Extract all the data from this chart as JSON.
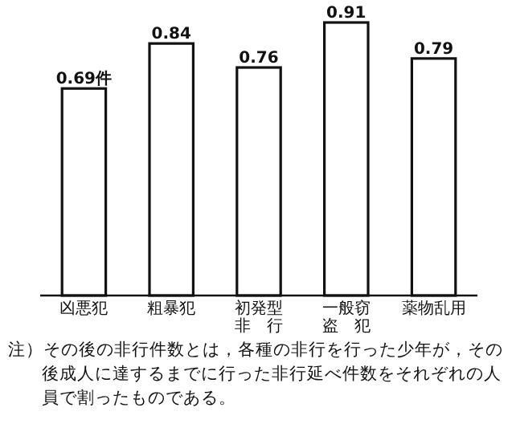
{
  "chart_data": {
    "type": "bar",
    "categories": [
      "凶悪犯",
      "粗暴犯",
      "初発型非行",
      "一般窃盗犯",
      "薬物乱用"
    ],
    "values": [
      0.69,
      0.84,
      0.76,
      0.91,
      0.79
    ],
    "value_labels": [
      "0.69件",
      "0.84",
      "0.76",
      "0.91",
      "0.79"
    ],
    "color": "#ffffff",
    "tick_labels": "x",
    "annotations": [
      "注）その後の非行件数とは，各種の非行を行った少年が，その後成人に達するまでに行った非行延べ件数をそれぞれの人員で割ったものである。"
    ]
  }
}
